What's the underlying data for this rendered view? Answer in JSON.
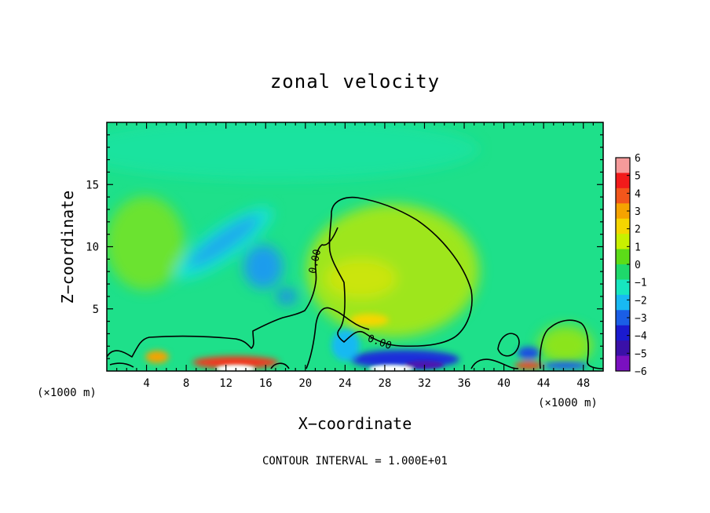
{
  "chart_data": {
    "type": "heatmap",
    "title": "zonal velocity",
    "xlabel": "X−coordinate",
    "ylabel": "Z−coordinate",
    "x_unit": "(×1000 m)",
    "z_unit": "(×1000 m)",
    "xlim": [
      0,
      50
    ],
    "ylim": [
      0,
      20
    ],
    "x_ticks": [
      "4",
      "8",
      "12",
      "16",
      "20",
      "24",
      "28",
      "32",
      "36",
      "40",
      "44",
      "48"
    ],
    "y_ticks": [
      "5",
      "10",
      "15"
    ],
    "colorbar": {
      "ticks": [
        "6",
        "5",
        "4",
        "3",
        "2",
        "1",
        "0",
        "−1",
        "−2",
        "−3",
        "−4",
        "−5",
        "−6"
      ],
      "colors": [
        "#f59a9a",
        "#f21b1b",
        "#f2561b",
        "#f5a300",
        "#f5d600",
        "#c8f000",
        "#5cdc18",
        "#1ed96b",
        "#17e6c0",
        "#18b9f2",
        "#1a5ee6",
        "#1a1acf",
        "#3a10a8",
        "#7a10c0"
      ]
    },
    "background_value": -0.5,
    "features": [
      {
        "kind": "negative-jet",
        "x": 11.5,
        "z": 10.5,
        "value": -3
      },
      {
        "kind": "negative-core",
        "x": 16,
        "z": 8,
        "value": -3.5
      },
      {
        "kind": "negative-core",
        "x": 18,
        "z": 5.7,
        "value": -3
      },
      {
        "kind": "positive-region",
        "x": 30,
        "z": 7,
        "value": 1.5
      },
      {
        "kind": "surface-positive",
        "x": 12,
        "z": 0.3,
        "value": 5
      },
      {
        "kind": "surface-negative",
        "x": 30,
        "z": 0.5,
        "value": -5
      },
      {
        "kind": "surface-negative",
        "x": 43,
        "z": 1.3,
        "value": -4
      }
    ],
    "contour_labels": [
      "0.00",
      "0.00"
    ],
    "grid": false,
    "legend": "right"
  },
  "footer": "CONTOUR INTERVAL = 1.000E+01"
}
